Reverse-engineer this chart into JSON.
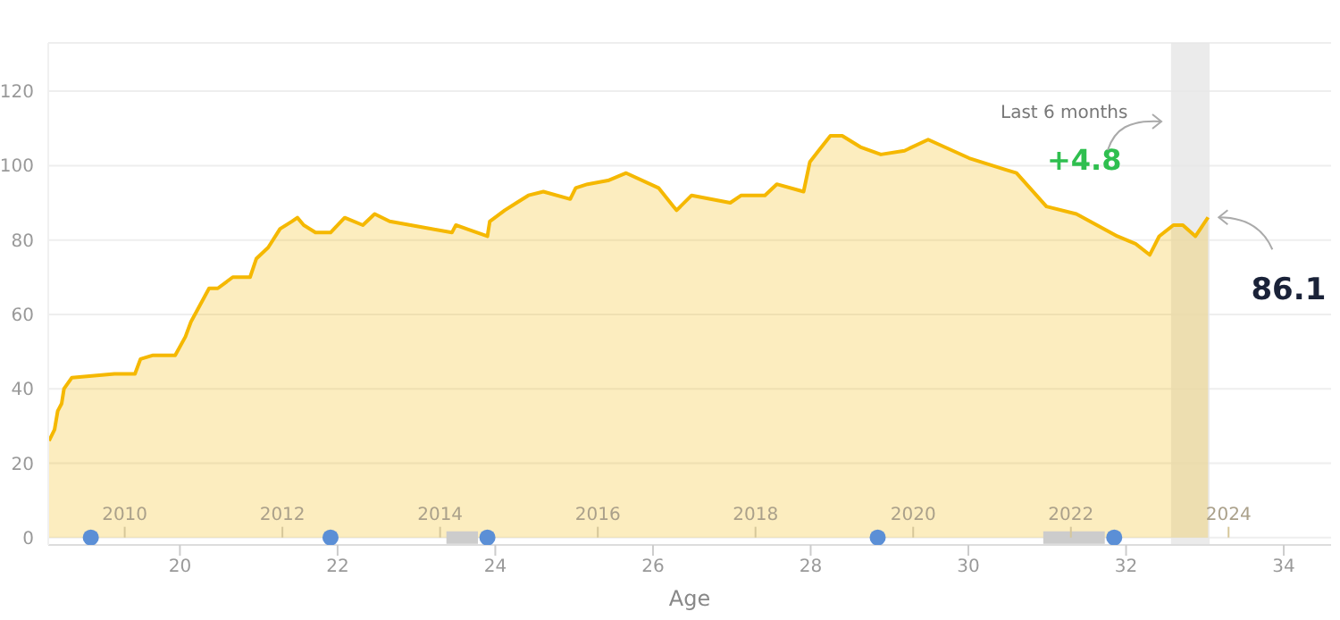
{
  "chart_data": {
    "type": "area",
    "xlabel": "Age",
    "xlim": [
      18.33,
      34.6
    ],
    "xticks": [
      20,
      22,
      24,
      26,
      28,
      30,
      32,
      34
    ],
    "x2lim": [
      2009.03,
      2025.3
    ],
    "x2ticks": [
      2010,
      2012,
      2014,
      2016,
      2018,
      2020,
      2022,
      2024
    ],
    "ylim": [
      -2,
      133
    ],
    "yticks": [
      0,
      20,
      40,
      60,
      80,
      100,
      120
    ],
    "grid": "y",
    "line_style": "solid",
    "series": [
      {
        "color": "#f5b800",
        "x": [
          18.34,
          18.41,
          18.45,
          18.5,
          18.53,
          18.63,
          19.17,
          19.43,
          19.5,
          19.66,
          19.94,
          20.07,
          20.14,
          20.37,
          20.48,
          20.67,
          20.89,
          20.97,
          21.12,
          21.27,
          21.42,
          21.49,
          21.57,
          21.72,
          21.91,
          22.09,
          22.32,
          22.47,
          22.66,
          23.45,
          23.5,
          23.9,
          23.93,
          24.12,
          24.27,
          24.42,
          24.61,
          24.95,
          25.02,
          25.17,
          25.43,
          25.66,
          26.07,
          26.26,
          26.3,
          26.49,
          26.98,
          27.12,
          27.42,
          27.57,
          27.91,
          27.99,
          28.1,
          28.25,
          28.4,
          28.63,
          28.89,
          29.19,
          29.49,
          30.01,
          30.46,
          30.61,
          30.99,
          31.37,
          31.89,
          32.12,
          32.3,
          32.42,
          32.6,
          32.72,
          32.88,
          33.04
        ],
        "values": [
          26,
          29,
          34,
          36,
          40,
          43,
          44,
          44,
          48,
          49,
          49,
          54,
          58,
          67,
          67,
          70,
          70,
          75,
          78,
          83,
          85,
          86,
          84,
          82,
          82,
          86,
          84,
          87,
          85,
          82,
          84,
          81,
          85,
          88,
          90,
          92,
          93,
          91,
          94,
          95,
          96,
          98,
          94,
          89,
          88,
          92,
          90,
          92,
          92,
          95,
          93,
          101,
          104,
          108,
          108,
          105,
          103,
          104,
          107,
          102,
          99,
          98,
          89,
          87,
          81,
          79,
          76,
          81,
          84,
          84,
          81,
          86.1
        ]
      },
      {
        "type": "scatter",
        "color": "#5b8fd6",
        "x": [
          18.87,
          21.91,
          23.9,
          28.85,
          31.85
        ],
        "values": [
          0,
          0,
          0,
          0,
          0
        ]
      },
      {
        "type": "line",
        "color": "#cccccc",
        "x": [
          23.38,
          23.78,
          23.79,
          30.95,
          31.73
        ],
        "values": [
          0,
          0,
          null,
          0,
          0
        ]
      }
    ],
    "bands": [
      {
        "axis": "x",
        "from": 32.57,
        "to": 33.06,
        "color": "#e6e6e6"
      }
    ],
    "annotations": [
      "Last 6 months",
      "+4.8",
      {
        "text": "86.1",
        "x": 33.04,
        "y": 86.1
      }
    ]
  }
}
